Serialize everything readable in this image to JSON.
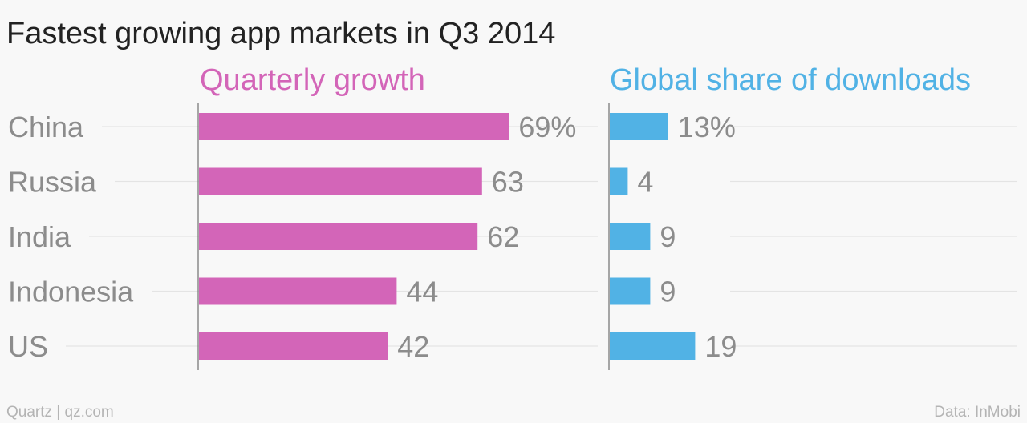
{
  "chart_data": {
    "type": "bar",
    "orientation": "horizontal",
    "title": "Fastest growing app markets in Q3 2014",
    "categories": [
      "China",
      "Russia",
      "India",
      "Indonesia",
      "US"
    ],
    "series": [
      {
        "name": "Quarterly growth",
        "values": [
          69,
          63,
          62,
          44,
          42
        ],
        "labels": [
          "69%",
          "63",
          "62",
          "44",
          "42"
        ],
        "color": "#d365b8"
      },
      {
        "name": "Global share of downloads",
        "values": [
          13,
          4,
          9,
          9,
          19
        ],
        "labels": [
          "13%",
          "4",
          "9",
          "9",
          "19"
        ],
        "color": "#51b2e5"
      }
    ],
    "grid": true,
    "legend": "none"
  },
  "footer": {
    "source_left": "Quartz | qz.com",
    "source_right": "Data: InMobi"
  },
  "colors": {
    "title": "#222222",
    "label": "#8c8c8c",
    "gridline": "#e4e4e4",
    "background": "#f8f8f8"
  }
}
